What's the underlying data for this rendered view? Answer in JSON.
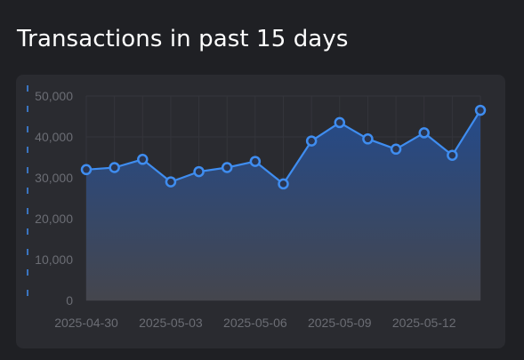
{
  "page": {
    "title": "Transactions in past 15 days"
  },
  "colors": {
    "background": "#1f2024",
    "card": "#2a2b30",
    "line": "#3f8df0",
    "area_top": "#244a8a",
    "area_bottom": "#45464d",
    "tick_text": "#6b6d74",
    "grid": "#34353b"
  },
  "chart_data": {
    "type": "area",
    "title": "Transactions in past 15 days",
    "xlabel": "",
    "ylabel": "",
    "x": [
      "2025-04-30",
      "2025-05-01",
      "2025-05-02",
      "2025-05-03",
      "2025-05-04",
      "2025-05-05",
      "2025-05-06",
      "2025-05-07",
      "2025-05-08",
      "2025-05-09",
      "2025-05-10",
      "2025-05-11",
      "2025-05-12",
      "2025-05-13",
      "2025-05-14"
    ],
    "x_tick_labels": [
      "2025-04-30",
      "2025-05-03",
      "2025-05-06",
      "2025-05-09",
      "2025-05-12"
    ],
    "y_tick_labels": [
      "0",
      "10,000",
      "20,000",
      "30,000",
      "40,000",
      "50,000"
    ],
    "series": [
      {
        "values": [
          32000,
          32500,
          34500,
          29000,
          31500,
          32500,
          34000,
          28500,
          39000,
          43500,
          39500,
          37000,
          41000,
          35500,
          46500
        ]
      }
    ],
    "ylim": [
      0,
      50000
    ],
    "grid": true,
    "legend": "none",
    "markers": "hollow-circle"
  }
}
